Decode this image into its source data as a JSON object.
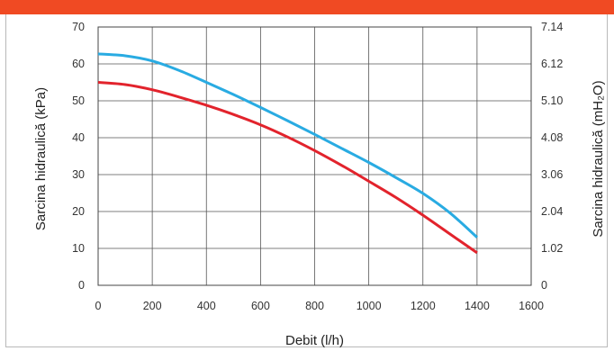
{
  "header": {
    "color": "#f04a23"
  },
  "chart_data": {
    "type": "line",
    "xlabel": "Debit (l/h)",
    "ylabel_left": "Sarcina  hidraulică (kPa)",
    "ylabel_right": "Sarcina hidraulică (mH₂O)",
    "xlim": [
      0,
      1600
    ],
    "ylim": [
      0,
      70
    ],
    "x_ticks": [
      "0",
      "200",
      "400",
      "600",
      "800",
      "1000",
      "1200",
      "1400",
      "1600"
    ],
    "y_ticks_left": [
      "0",
      "10",
      "20",
      "30",
      "40",
      "50",
      "60",
      "70"
    ],
    "y_ticks_right": [
      "0",
      "1.02",
      "2.04",
      "3.06",
      "4.08",
      "5.10",
      "6.12",
      "7.14"
    ],
    "grid": true,
    "series": [
      {
        "color": "#29abe2",
        "x": [
          0,
          100,
          200,
          300,
          400,
          500,
          600,
          700,
          800,
          900,
          1000,
          1100,
          1200,
          1300,
          1400
        ],
        "y": [
          62.7,
          62.2,
          60.8,
          58.2,
          55.0,
          51.7,
          48.2,
          44.6,
          40.9,
          37.1,
          33.3,
          29.2,
          24.9,
          19.6,
          13.0
        ]
      },
      {
        "color": "#e2232c",
        "x": [
          0,
          100,
          200,
          300,
          400,
          500,
          600,
          700,
          800,
          900,
          1000,
          1100,
          1200,
          1300,
          1400
        ],
        "y": [
          55.0,
          54.4,
          53.0,
          51.0,
          48.8,
          46.3,
          43.5,
          40.2,
          36.5,
          32.5,
          28.2,
          23.8,
          19.0,
          13.9,
          8.8
        ]
      }
    ]
  }
}
